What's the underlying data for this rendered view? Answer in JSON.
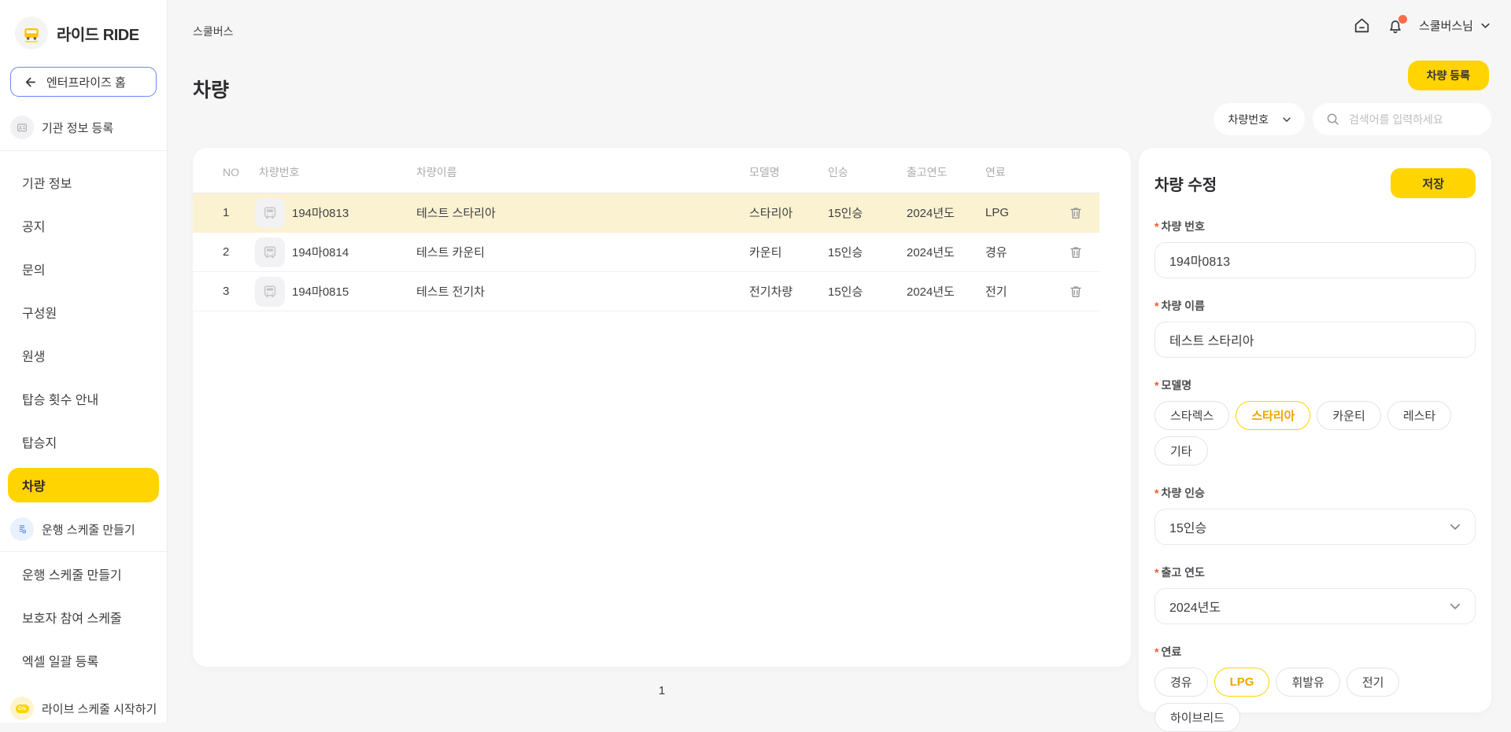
{
  "colors": {
    "accent_yellow": "#FFD400",
    "row_highlight": "#FBF2D2",
    "selected_chip_text": "#F0A400",
    "required_asterisk": "#FF5226",
    "enterprise_border": "#6A86F7",
    "notification_badge": "#FF6B4A",
    "schedule_icon_blue": "#5B8DEF"
  },
  "brand": {
    "logo_text": "라이드 RIDE"
  },
  "sidebar": {
    "enterprise_home": "엔터프라이즈 홈",
    "org_register": "기관 정보 등록",
    "menu": [
      {
        "key": "org-info",
        "label": "기관 정보"
      },
      {
        "key": "notice",
        "label": "공지"
      },
      {
        "key": "inquiry",
        "label": "문의"
      },
      {
        "key": "members",
        "label": "구성원"
      },
      {
        "key": "students",
        "label": "원생"
      },
      {
        "key": "ride-count-guide",
        "label": "탑승 횟수 안내"
      },
      {
        "key": "stops",
        "label": "탑승지"
      },
      {
        "key": "vehicles",
        "label": "차량",
        "active": true
      }
    ],
    "schedule_section_header": "운행 스케줄 만들기",
    "schedule_menu": [
      {
        "key": "create-schedule",
        "label": "운행 스케줄 만들기"
      },
      {
        "key": "guardian-schedule",
        "label": "보호자 참여 스케줄"
      },
      {
        "key": "excel-bulk",
        "label": "엑셀 일괄 등록"
      }
    ],
    "live_schedule": {
      "label": "라이브 스케줄 시작하기",
      "badge": "ON"
    }
  },
  "topbar": {
    "breadcrumb": "스쿨버스",
    "username": "스쿨버스님"
  },
  "page": {
    "title": "차량",
    "register_button": "차량 등록"
  },
  "filter": {
    "field_selector": "차량번호",
    "search_placeholder": "검색어를 입력하세요"
  },
  "table": {
    "headers": {
      "no": "NO",
      "plate": "차량번호",
      "name": "차량이름",
      "model": "모델명",
      "capacity": "인승",
      "year": "출고연도",
      "fuel": "연료"
    },
    "rows": [
      {
        "no": "1",
        "plate": "194마0813",
        "name": "테스트 스타리아",
        "model": "스타리아",
        "capacity": "15인승",
        "year": "2024년도",
        "fuel": "LPG",
        "highlighted": true
      },
      {
        "no": "2",
        "plate": "194마0814",
        "name": "테스트 카운티",
        "model": "카운티",
        "capacity": "15인승",
        "year": "2024년도",
        "fuel": "경유",
        "highlighted": false
      },
      {
        "no": "3",
        "plate": "194마0815",
        "name": "테스트 전기차",
        "model": "전기차량",
        "capacity": "15인승",
        "year": "2024년도",
        "fuel": "전기",
        "highlighted": false
      }
    ],
    "pagination_current": "1"
  },
  "edit_panel": {
    "title": "차량 수정",
    "save_button": "저장",
    "plate": {
      "label": "차량 번호",
      "value": "194마0813"
    },
    "name": {
      "label": "차량 이름",
      "value": "테스트 스타리아"
    },
    "model": {
      "label": "모델명",
      "options": [
        "스타렉스",
        "스타리아",
        "카운티",
        "레스타",
        "기타"
      ],
      "selected": "스타리아"
    },
    "capacity": {
      "label": "차량 인승",
      "value": "15인승"
    },
    "year": {
      "label": "출고 연도",
      "value": "2024년도"
    },
    "fuel": {
      "label": "연료",
      "options": [
        "경유",
        "LPG",
        "휘발유",
        "전기",
        "하이브리드"
      ],
      "selected": "LPG"
    }
  }
}
